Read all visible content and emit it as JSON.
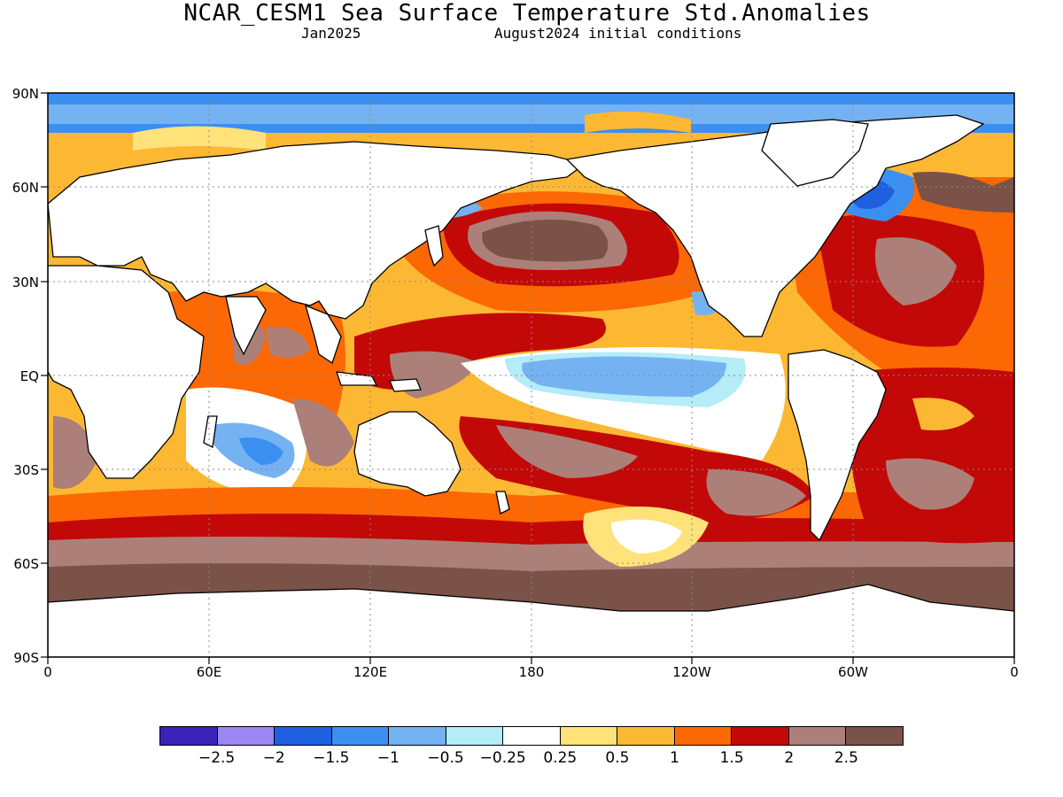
{
  "header": {
    "title": "NCAR_CESM1 Sea Surface Temperature Std.Anomalies",
    "target_month": "Jan2025",
    "initial_conditions": "August2024 initial conditions"
  },
  "axes": {
    "lat_labels": [
      "90N",
      "60N",
      "30N",
      "EQ",
      "30S",
      "60S",
      "90S"
    ],
    "lon_labels": [
      "0",
      "60E",
      "120E",
      "180",
      "120W",
      "60W",
      "0"
    ]
  },
  "legend": {
    "colors": [
      "#3a22b8",
      "#9c86f2",
      "#1f5fe0",
      "#3b8ff0",
      "#74b2f2",
      "#b4ecf8",
      "#ffffff",
      "#ffe27a",
      "#fdb833",
      "#fc6804",
      "#c30808",
      "#ac8078",
      "#7a5247"
    ],
    "labels": [
      "−2.5",
      "−2",
      "−1.5",
      "−1",
      "−0.5",
      "−0.25",
      "0.25",
      "0.5",
      "1",
      "1.5",
      "2",
      "2.5"
    ]
  },
  "map_data": {
    "type": "filled-contour-map",
    "projection": "equirectangular",
    "lon_range": [
      0,
      360
    ],
    "lat_range": [
      -90,
      90
    ],
    "variable": "SST standardized anomaly",
    "land_color": "#ffffff",
    "regions": [
      {
        "name": "North Pacific warm blob",
        "anomaly": 2.5
      },
      {
        "name": "Equatorial central-east Pacific",
        "anomaly": -1.0
      },
      {
        "name": "Southern Ocean band",
        "anomaly": 2.5
      },
      {
        "name": "Labrador Sea / NW Atlantic",
        "anomaly": -2.0
      },
      {
        "name": "South Indian Ocean cool patch",
        "anomaly": -1.5
      },
      {
        "name": "Western Pacific warm pool",
        "anomaly": 2.0
      },
      {
        "name": "South Atlantic",
        "anomaly": 2.0
      },
      {
        "name": "South Pacific mid-latitudes",
        "anomaly": 1.0
      }
    ]
  }
}
